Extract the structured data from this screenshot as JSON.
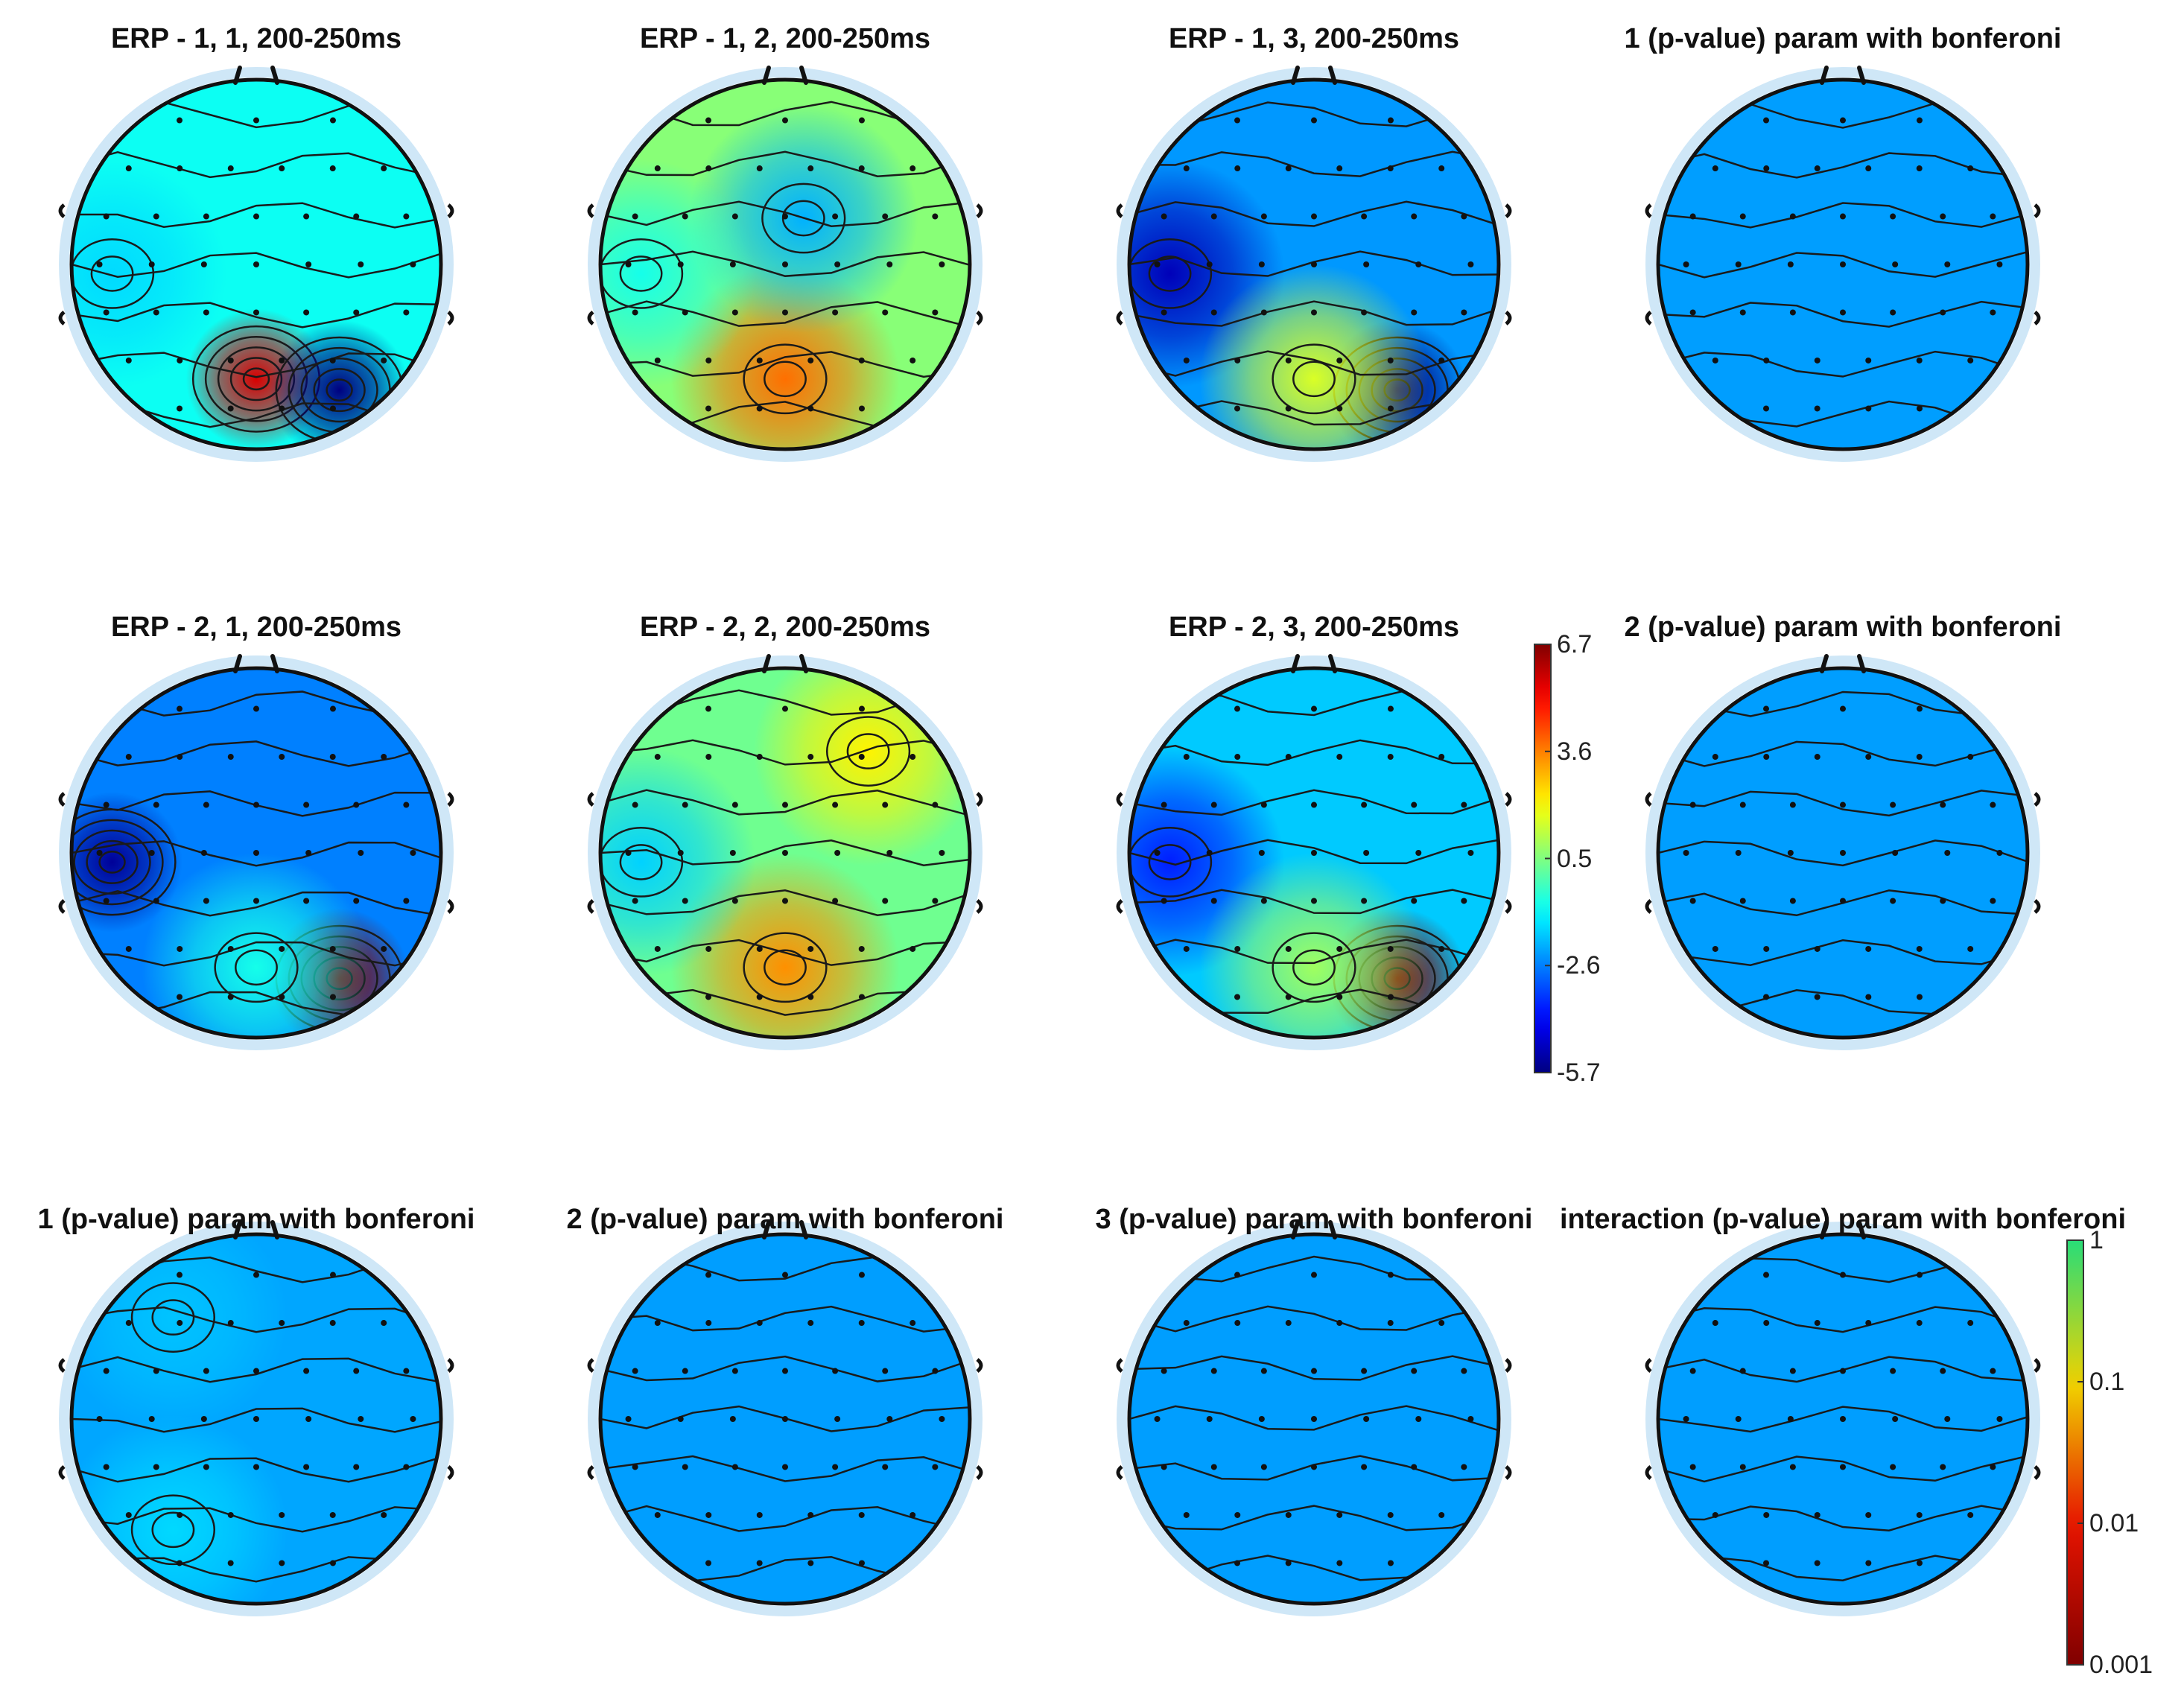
{
  "colors": {
    "background": "#ffffff",
    "electrode": "#111111",
    "contour": "#1a1a1a",
    "head_outline": "#111111",
    "halo": "#cfe7f7"
  },
  "chart_data": {
    "type": "heatmap",
    "description_kind": "EEG scalp topography maps",
    "colorbars": [
      {
        "id": "erp",
        "colormap": "jet",
        "scale": "linear",
        "range": [
          -5.7,
          6.7
        ],
        "ticks": [
          6.7,
          3.6,
          0.5,
          -2.6,
          -5.7
        ],
        "tick_labels": [
          "6.7",
          "3.6",
          "0.5",
          "-2.6",
          "-5.7"
        ]
      },
      {
        "id": "pvalue",
        "colormap": "green-yellow-red",
        "scale": "log",
        "range": [
          0.001,
          1
        ],
        "ticks": [
          1,
          0.1,
          0.01,
          0.001
        ],
        "tick_labels": [
          "1",
          "0.1",
          "0.01",
          "0.001"
        ]
      }
    ],
    "maps": [
      {
        "title": "ERP - 1, 1, 200-250ms",
        "row": 0,
        "col": 0,
        "colorbar": "erp",
        "mean_value": -0.9,
        "blobs": [
          {
            "pos": "bottom-center",
            "value": 5.6
          },
          {
            "pos": "bottom-right",
            "value": -5.7
          },
          {
            "pos": "left",
            "value": -1.5
          }
        ]
      },
      {
        "title": "ERP - 1, 2, 200-250ms",
        "row": 0,
        "col": 1,
        "colorbar": "erp",
        "mean_value": 0.6,
        "blobs": [
          {
            "pos": "bottom-center",
            "value": 3.8
          },
          {
            "pos": "upper-center",
            "value": -2.0
          },
          {
            "pos": "left",
            "value": -0.8
          }
        ]
      },
      {
        "title": "ERP - 1, 3, 200-250ms",
        "row": 0,
        "col": 2,
        "colorbar": "erp",
        "mean_value": -2.3,
        "blobs": [
          {
            "pos": "left",
            "value": -5.0
          },
          {
            "pos": "bottom-right",
            "value": -5.7
          },
          {
            "pos": "bottom-center",
            "value": 1.6
          }
        ]
      },
      {
        "title": "1 (p-value) param with bonferoni",
        "row": 0,
        "col": 3,
        "colorbar": "pvalue",
        "mean_value": 1,
        "blobs": []
      },
      {
        "title": "ERP - 2, 1, 200-250ms",
        "row": 1,
        "col": 0,
        "colorbar": "erp",
        "mean_value": -2.6,
        "blobs": [
          {
            "pos": "left",
            "value": -5.4
          },
          {
            "pos": "bottom-right",
            "value": 6.7
          },
          {
            "pos": "bottom-center",
            "value": -0.8
          }
        ]
      },
      {
        "title": "ERP - 2, 2, 200-250ms",
        "row": 1,
        "col": 1,
        "colorbar": "erp",
        "mean_value": 0.3,
        "blobs": [
          {
            "pos": "bottom-center",
            "value": 3.4
          },
          {
            "pos": "top-right",
            "value": 2.2
          },
          {
            "pos": "left",
            "value": -1.6
          }
        ]
      },
      {
        "title": "ERP - 2, 3, 200-250ms",
        "row": 1,
        "col": 2,
        "colorbar": "erp",
        "mean_value": -1.7,
        "blobs": [
          {
            "pos": "bottom-right",
            "value": 6.7
          },
          {
            "pos": "left",
            "value": -3.8
          },
          {
            "pos": "bottom-center",
            "value": 0.9
          }
        ]
      },
      {
        "title": "2 (p-value) param with bonferoni",
        "row": 1,
        "col": 3,
        "colorbar": "pvalue",
        "mean_value": 1,
        "blobs": []
      },
      {
        "title": "1 (p-value) param with bonferoni",
        "row": 2,
        "col": 0,
        "colorbar": "pvalue",
        "mean_value": 0.9,
        "blobs": [
          {
            "pos": "bottom-left",
            "value": 0.45
          },
          {
            "pos": "top-left",
            "value": 0.6
          }
        ]
      },
      {
        "title": "2 (p-value) param with bonferoni",
        "row": 2,
        "col": 1,
        "colorbar": "pvalue",
        "mean_value": 1,
        "blobs": []
      },
      {
        "title": "3 (p-value) param with bonferoni",
        "row": 2,
        "col": 2,
        "colorbar": "pvalue",
        "mean_value": 1,
        "blobs": []
      },
      {
        "title": "interaction (p-value) param with bonferoni",
        "row": 2,
        "col": 3,
        "colorbar": "pvalue",
        "mean_value": 1,
        "blobs": []
      }
    ]
  }
}
